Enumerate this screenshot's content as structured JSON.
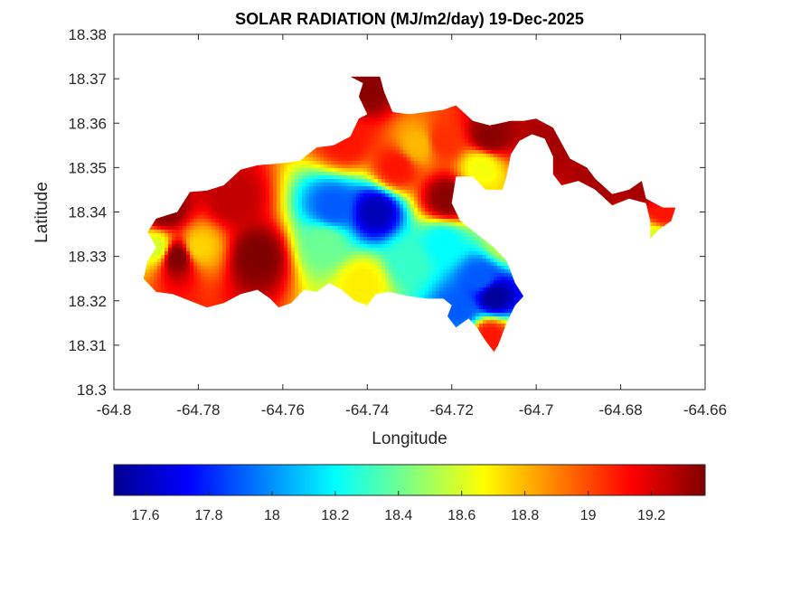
{
  "chart_data": {
    "type": "heatmap",
    "title": "SOLAR RADIATION (MJ/m2/day) 19-Dec-2025",
    "xlabel": "Longitude",
    "ylabel": "Latitude",
    "xlim": [
      -64.8,
      -64.66
    ],
    "ylim": [
      18.3,
      18.38
    ],
    "x_ticks": [
      -64.8,
      -64.78,
      -64.76,
      -64.74,
      -64.72,
      -64.7,
      -64.68,
      -64.66
    ],
    "y_ticks": [
      18.3,
      18.31,
      18.32,
      18.33,
      18.34,
      18.35,
      18.36,
      18.37,
      18.38
    ],
    "x_tick_labels": [
      "-64.8",
      "-64.78",
      "-64.76",
      "-64.74",
      "-64.72",
      "-64.7",
      "-64.68",
      "-64.66"
    ],
    "y_tick_labels": [
      "18.3",
      "18.31",
      "18.32",
      "18.33",
      "18.34",
      "18.35",
      "18.36",
      "18.37",
      "18.38"
    ],
    "colormap": "jet",
    "clim": [
      17.5,
      19.37
    ],
    "colorbar": {
      "location": "south",
      "ticks": [
        17.6,
        17.8,
        18,
        18.2,
        18.4,
        18.6,
        18.8,
        19,
        19.2
      ],
      "tick_labels": [
        "17.6",
        "17.8",
        "18",
        "18.2",
        "18.4",
        "18.6",
        "18.8",
        "19",
        "19.2"
      ]
    },
    "grid": false,
    "land_outline": [
      [
        -64.792,
        18.3355
      ],
      [
        -64.79,
        18.3385
      ],
      [
        -64.785,
        18.34
      ],
      [
        -64.782,
        18.3445
      ],
      [
        -64.778,
        18.3448
      ],
      [
        -64.774,
        18.346
      ],
      [
        -64.77,
        18.3495
      ],
      [
        -64.766,
        18.3505
      ],
      [
        -64.76,
        18.351
      ],
      [
        -64.756,
        18.3515
      ],
      [
        -64.752,
        18.3545
      ],
      [
        -64.748,
        18.355
      ],
      [
        -64.744,
        18.357
      ],
      [
        -64.742,
        18.361
      ],
      [
        -64.74,
        18.362
      ],
      [
        -64.742,
        18.366
      ],
      [
        -64.741,
        18.369
      ],
      [
        -64.744,
        18.3705
      ],
      [
        -64.737,
        18.3705
      ],
      [
        -64.736,
        18.367
      ],
      [
        -64.734,
        18.3625
      ],
      [
        -64.73,
        18.362
      ],
      [
        -64.726,
        18.3625
      ],
      [
        -64.722,
        18.363
      ],
      [
        -64.719,
        18.364
      ],
      [
        -64.715,
        18.3605
      ],
      [
        -64.711,
        18.3595
      ],
      [
        -64.706,
        18.3605
      ],
      [
        -64.703,
        18.3605
      ],
      [
        -64.7,
        18.361
      ],
      [
        -64.696,
        18.359
      ],
      [
        -64.694,
        18.3555
      ],
      [
        -64.692,
        18.352
      ],
      [
        -64.688,
        18.35
      ],
      [
        -64.686,
        18.3475
      ],
      [
        -64.682,
        18.344
      ],
      [
        -64.678,
        18.345
      ],
      [
        -64.675,
        18.347
      ],
      [
        -64.674,
        18.343
      ],
      [
        -64.672,
        18.342
      ],
      [
        -64.67,
        18.341
      ],
      [
        -64.667,
        18.341
      ],
      [
        -64.668,
        18.338
      ],
      [
        -64.671,
        18.336
      ],
      [
        -64.673,
        18.334
      ],
      [
        -64.673,
        18.338
      ],
      [
        -64.674,
        18.342
      ],
      [
        -64.678,
        18.343
      ],
      [
        -64.682,
        18.3415
      ],
      [
        -64.686,
        18.345
      ],
      [
        -64.69,
        18.347
      ],
      [
        -64.694,
        18.346
      ],
      [
        -64.696,
        18.3485
      ],
      [
        -64.696,
        18.3525
      ],
      [
        -64.698,
        18.3565
      ],
      [
        -64.701,
        18.3575
      ],
      [
        -64.704,
        18.356
      ],
      [
        -64.706,
        18.353
      ],
      [
        -64.707,
        18.348
      ],
      [
        -64.708,
        18.345
      ],
      [
        -64.712,
        18.345
      ],
      [
        -64.715,
        18.348
      ],
      [
        -64.719,
        18.348
      ],
      [
        -64.72,
        18.342
      ],
      [
        -64.718,
        18.338
      ],
      [
        -64.714,
        18.335
      ],
      [
        -64.71,
        18.332
      ],
      [
        -64.707,
        18.329
      ],
      [
        -64.705,
        18.324
      ],
      [
        -64.703,
        18.321
      ],
      [
        -64.705,
        18.319
      ],
      [
        -64.707,
        18.315
      ],
      [
        -64.709,
        18.31
      ],
      [
        -64.71,
        18.3085
      ],
      [
        -64.712,
        18.311
      ],
      [
        -64.714,
        18.314
      ],
      [
        -64.716,
        18.316
      ],
      [
        -64.719,
        18.314
      ],
      [
        -64.721,
        18.3165
      ],
      [
        -64.72,
        18.319
      ],
      [
        -64.722,
        18.3205
      ],
      [
        -64.726,
        18.3205
      ],
      [
        -64.73,
        18.321
      ],
      [
        -64.735,
        18.322
      ],
      [
        -64.738,
        18.3215
      ],
      [
        -64.74,
        18.319
      ],
      [
        -64.743,
        18.32
      ],
      [
        -64.746,
        18.3225
      ],
      [
        -64.749,
        18.324
      ],
      [
        -64.752,
        18.322
      ],
      [
        -64.755,
        18.3225
      ],
      [
        -64.758,
        18.3195
      ],
      [
        -64.761,
        18.3185
      ],
      [
        -64.763,
        18.3205
      ],
      [
        -64.766,
        18.3225
      ],
      [
        -64.77,
        18.3215
      ],
      [
        -64.774,
        18.3195
      ],
      [
        -64.778,
        18.3185
      ],
      [
        -64.782,
        18.32
      ],
      [
        -64.786,
        18.3215
      ],
      [
        -64.79,
        18.322
      ],
      [
        -64.793,
        18.325
      ],
      [
        -64.792,
        18.329
      ],
      [
        -64.79,
        18.332
      ]
    ],
    "field_extrema": [
      {
        "x": -64.788,
        "y": 18.34,
        "value": 19.35
      },
      {
        "x": -64.785,
        "y": 18.33,
        "value": 19.37
      },
      {
        "x": -64.766,
        "y": 18.33,
        "value": 19.37
      },
      {
        "x": -64.772,
        "y": 18.343,
        "value": 19.25
      },
      {
        "x": -64.78,
        "y": 18.332,
        "value": 18.75
      },
      {
        "x": -64.79,
        "y": 18.332,
        "value": 18.6
      },
      {
        "x": -64.733,
        "y": 18.35,
        "value": 19.1
      },
      {
        "x": -64.745,
        "y": 18.356,
        "value": 19.1
      },
      {
        "x": -64.722,
        "y": 18.356,
        "value": 19.05
      },
      {
        "x": -64.721,
        "y": 18.343,
        "value": 19.35
      },
      {
        "x": -64.711,
        "y": 18.357,
        "value": 19.35
      },
      {
        "x": -64.74,
        "y": 18.368,
        "value": 19.35
      },
      {
        "x": -64.713,
        "y": 18.35,
        "value": 18.65
      },
      {
        "x": -64.728,
        "y": 18.355,
        "value": 18.8
      },
      {
        "x": -64.748,
        "y": 18.341,
        "value": 17.9
      },
      {
        "x": -64.738,
        "y": 18.34,
        "value": 17.6
      },
      {
        "x": -64.75,
        "y": 18.333,
        "value": 18.4
      },
      {
        "x": -64.741,
        "y": 18.324,
        "value": 18.7
      },
      {
        "x": -64.73,
        "y": 18.329,
        "value": 18.3
      },
      {
        "x": -64.722,
        "y": 18.333,
        "value": 18.2
      },
      {
        "x": -64.71,
        "y": 18.321,
        "value": 17.55
      },
      {
        "x": -64.713,
        "y": 18.325,
        "value": 17.9
      },
      {
        "x": -64.718,
        "y": 18.318,
        "value": 17.9
      },
      {
        "x": -64.707,
        "y": 18.333,
        "value": 18.55
      },
      {
        "x": -64.711,
        "y": 18.312,
        "value": 19.1
      },
      {
        "x": -64.685,
        "y": 18.347,
        "value": 19.3
      },
      {
        "x": -64.697,
        "y": 18.355,
        "value": 19.3
      },
      {
        "x": -64.675,
        "y": 18.345,
        "value": 19.3
      },
      {
        "x": -64.67,
        "y": 18.34,
        "value": 19.1
      },
      {
        "x": -64.672,
        "y": 18.334,
        "value": 18.6
      }
    ]
  }
}
